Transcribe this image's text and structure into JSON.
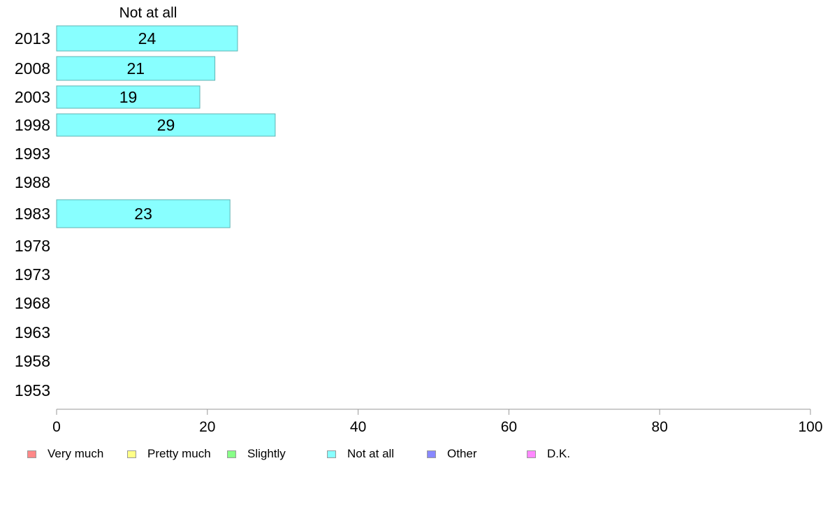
{
  "chart_data": {
    "type": "bar",
    "orientation": "horizontal",
    "title": "Not at all",
    "categories": [
      "2013",
      "2008",
      "2003",
      "1998",
      "1993",
      "1988",
      "1983",
      "1978",
      "1973",
      "1968",
      "1963",
      "1958",
      "1953"
    ],
    "series": [
      {
        "name": "Not at all",
        "color": "#88ffff",
        "values": [
          24,
          21,
          19,
          29,
          null,
          null,
          23,
          null,
          null,
          null,
          null,
          null,
          null
        ]
      }
    ],
    "xlim": [
      0,
      100
    ],
    "xticks": [
      "0",
      "20",
      "40",
      "60",
      "80",
      "100"
    ],
    "grid": false,
    "legend": {
      "placement": "bottom",
      "items": [
        {
          "label": "Very much",
          "color": "#ff8888"
        },
        {
          "label": "Pretty much",
          "color": "#ffff88"
        },
        {
          "label": "Slightly",
          "color": "#88ff88"
        },
        {
          "label": "Not at all",
          "color": "#88ffff"
        },
        {
          "label": "Other",
          "color": "#8888ff"
        },
        {
          "label": "D.K.",
          "color": "#ff88ff"
        }
      ]
    }
  }
}
